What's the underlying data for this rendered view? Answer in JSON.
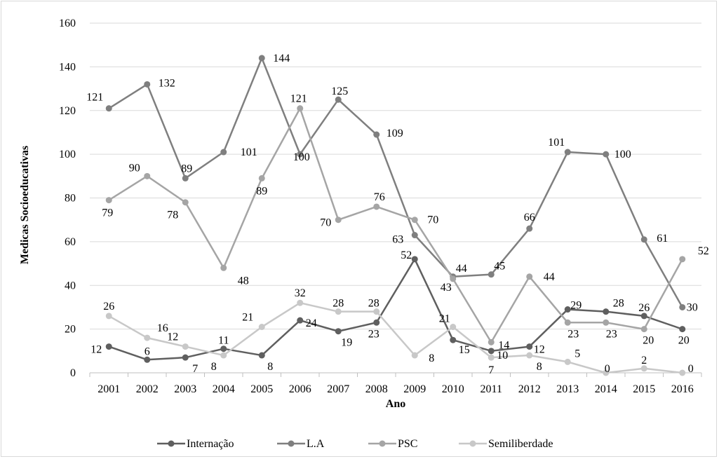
{
  "chart_data": {
    "type": "line",
    "title": "",
    "xlabel": "Ano",
    "ylabel": "Medicas Socioeducativas",
    "ylim": [
      0,
      160
    ],
    "yticks": [
      0,
      20,
      40,
      60,
      80,
      100,
      120,
      140,
      160
    ],
    "grid": true,
    "legend_position": "bottom",
    "categories": [
      "2001",
      "2002",
      "2003",
      "2004",
      "2005",
      "2006",
      "2007",
      "2008",
      "2009",
      "2010",
      "2011",
      "2012",
      "2013",
      "2014",
      "2015",
      "2016"
    ],
    "series": [
      {
        "name": "Internação",
        "color": "#5f5f5f",
        "values": [
          12,
          6,
          7,
          11,
          8,
          24,
          19,
          23,
          52,
          15,
          10,
          12,
          29,
          28,
          26,
          20
        ]
      },
      {
        "name": "L.A",
        "color": "#7f7f7f",
        "values": [
          121,
          132,
          89,
          101,
          144,
          100,
          125,
          109,
          63,
          44,
          45,
          66,
          101,
          100,
          61,
          30
        ]
      },
      {
        "name": "PSC",
        "color": "#a5a5a5",
        "values": [
          79,
          90,
          78,
          48,
          89,
          121,
          70,
          76,
          70,
          43,
          14,
          44,
          23,
          23,
          20,
          52
        ]
      },
      {
        "name": "Semiliberdade",
        "color": "#c8c8c8",
        "values": [
          26,
          16,
          12,
          8,
          21,
          32,
          28,
          28,
          8,
          21,
          7,
          8,
          5,
          0,
          2,
          0
        ]
      }
    ]
  }
}
